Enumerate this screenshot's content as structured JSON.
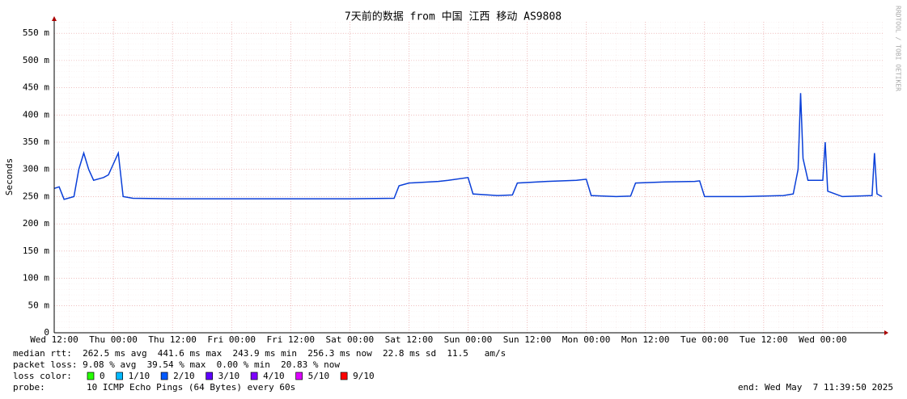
{
  "chart_data": {
    "type": "line",
    "title": "7天前的数据 from 中国 江西 移动 AS9808",
    "y_label": "Seconds",
    "watermark": "RRDTOOL / TOBI OETIKER",
    "xlim": [
      0,
      168.5
    ],
    "xticks": [
      {
        "value": 0,
        "label": "Wed 12:00"
      },
      {
        "value": 12,
        "label": "Thu 00:00"
      },
      {
        "value": 24,
        "label": "Thu 12:00"
      },
      {
        "value": 36,
        "label": "Fri 00:00"
      },
      {
        "value": 48,
        "label": "Fri 12:00"
      },
      {
        "value": 60,
        "label": "Sat 00:00"
      },
      {
        "value": 72,
        "label": "Sat 12:00"
      },
      {
        "value": 84,
        "label": "Sun 00:00"
      },
      {
        "value": 96,
        "label": "Sun 12:00"
      },
      {
        "value": 108,
        "label": "Mon 00:00"
      },
      {
        "value": 120,
        "label": "Mon 12:00"
      },
      {
        "value": 132,
        "label": "Tue 00:00"
      },
      {
        "value": 144,
        "label": "Tue 12:00"
      },
      {
        "value": 156,
        "label": "Wed 00:00"
      }
    ],
    "ylim": [
      0,
      0.571
    ],
    "yticks": [
      0,
      {
        "value": 0.05,
        "label": "50 m"
      },
      {
        "value": 0.1,
        "label": "100 m"
      },
      {
        "value": 0.15,
        "label": "150 m"
      },
      {
        "value": 0.2,
        "label": "200 m"
      },
      {
        "value": 0.25,
        "label": "250 m"
      },
      {
        "value": 0.3,
        "label": "300 m"
      },
      {
        "value": 0.35,
        "label": "350 m"
      },
      {
        "value": 0.4,
        "label": "400 m"
      },
      {
        "value": 0.45,
        "label": "450 m"
      },
      {
        "value": 0.5,
        "label": "500 m"
      },
      {
        "value": 0.55,
        "label": "550 m"
      }
    ],
    "grid": true,
    "x": [
      0,
      1,
      2,
      4,
      5,
      6,
      7,
      8,
      10,
      11,
      12,
      13,
      14,
      16,
      24,
      36,
      48,
      60,
      69,
      70,
      72,
      78,
      80,
      84,
      85,
      90,
      93,
      94,
      100,
      106,
      108,
      109,
      114,
      117,
      118,
      124,
      130,
      131,
      132,
      140,
      148,
      150,
      151,
      151.5,
      152,
      153,
      156,
      156.5,
      157,
      160,
      166,
      166.5,
      167,
      168
    ],
    "series": [
      {
        "color": "#0a3fd8",
        "values": [
          0.265,
          0.268,
          0.245,
          0.25,
          0.3,
          0.33,
          0.3,
          0.28,
          0.285,
          0.29,
          0.31,
          0.33,
          0.25,
          0.247,
          0.246,
          0.246,
          0.246,
          0.246,
          0.247,
          0.27,
          0.275,
          0.278,
          0.28,
          0.285,
          0.255,
          0.252,
          0.253,
          0.275,
          0.278,
          0.28,
          0.282,
          0.252,
          0.25,
          0.251,
          0.275,
          0.277,
          0.278,
          0.279,
          0.25,
          0.25,
          0.252,
          0.255,
          0.3,
          0.44,
          0.32,
          0.28,
          0.28,
          0.35,
          0.26,
          0.25,
          0.252,
          0.33,
          0.255,
          0.25
        ]
      }
    ],
    "stats": [
      "median rtt:  262.5 ms avg  441.6 ms max  243.9 ms min  256.3 ms now  22.8 ms sd  11.5   am/s",
      "packet loss: 9.08 % avg  39.54 % max  0.00 % min  20.83 % now"
    ],
    "loss_legend": {
      "label": "loss color:",
      "items": [
        {
          "label": "0",
          "color": "#26ff00"
        },
        {
          "label": "1/10",
          "color": "#00b8ff"
        },
        {
          "label": "2/10",
          "color": "#0059ff"
        },
        {
          "label": "3/10",
          "color": "#5e00ff"
        },
        {
          "label": "4/10",
          "color": "#7e00ff"
        },
        {
          "label": "5/10",
          "color": "#dd00ff"
        },
        {
          "label": "9/10",
          "color": "#ff0000"
        }
      ]
    },
    "probe": {
      "label": "probe:",
      "text": "10 ICMP Echo Pings (64 Bytes) every 60s"
    },
    "end": "end: Wed May  7 11:39:50 2025"
  }
}
